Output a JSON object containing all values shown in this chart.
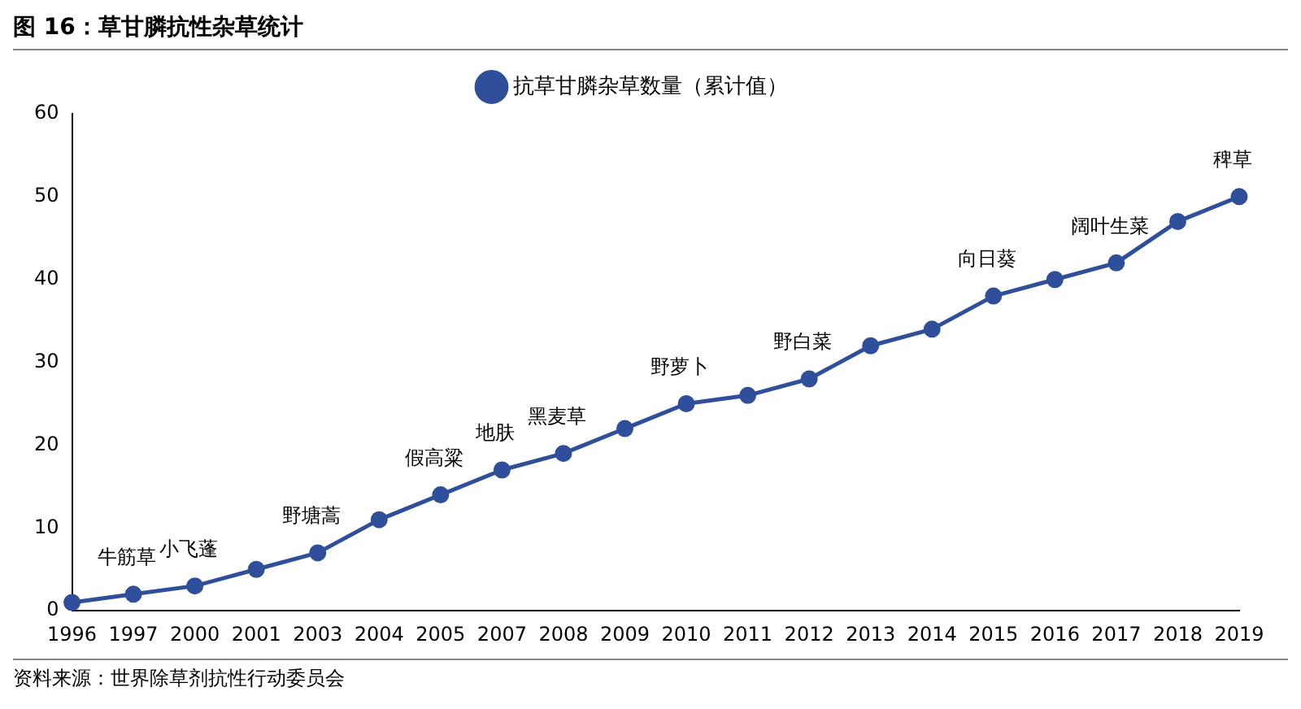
{
  "chart_data": {
    "type": "line",
    "title": "图 16：草甘膦抗性杂草统计",
    "categories": [
      "1996",
      "1997",
      "2000",
      "2001",
      "2003",
      "2004",
      "2005",
      "2007",
      "2008",
      "2009",
      "2010",
      "2011",
      "2012",
      "2013",
      "2014",
      "2015",
      "2016",
      "2017",
      "2018",
      "2019"
    ],
    "series": [
      {
        "name": "抗草甘膦杂草数量（累计值）",
        "color": "#2f4f9a",
        "values": [
          1,
          2,
          3,
          5,
          7,
          11,
          14,
          17,
          19,
          22,
          25,
          26,
          28,
          32,
          34,
          38,
          40,
          42,
          47,
          50
        ]
      }
    ],
    "ylim": [
      0,
      60
    ],
    "yticks": [
      0,
      10,
      20,
      30,
      40,
      50,
      60
    ],
    "grid": false,
    "legend": "top",
    "marker": "circle",
    "line_style": "solid",
    "annotations": [
      {
        "text": "牛筋草",
        "x": "1997",
        "y": 2
      },
      {
        "text": "小飞蓬",
        "x": "2000",
        "y": 3
      },
      {
        "text": "野塘蒿",
        "x": "2003",
        "y": 7
      },
      {
        "text": "假高粱",
        "x": "2005",
        "y": 14
      },
      {
        "text": "地肤",
        "x": "2007",
        "y": 17
      },
      {
        "text": "黑麦草",
        "x": "2008",
        "y": 19
      },
      {
        "text": "野萝卜",
        "x": "2010",
        "y": 25
      },
      {
        "text": "野白菜",
        "x": "2012",
        "y": 28
      },
      {
        "text": "向日葵",
        "x": "2015",
        "y": 38
      },
      {
        "text": "阔叶生菜",
        "x": "2017",
        "y": 42
      },
      {
        "text": "稗草",
        "x": "2019",
        "y": 50
      },
      "资料来源：世界除草剂抗性行动委员会"
    ]
  }
}
